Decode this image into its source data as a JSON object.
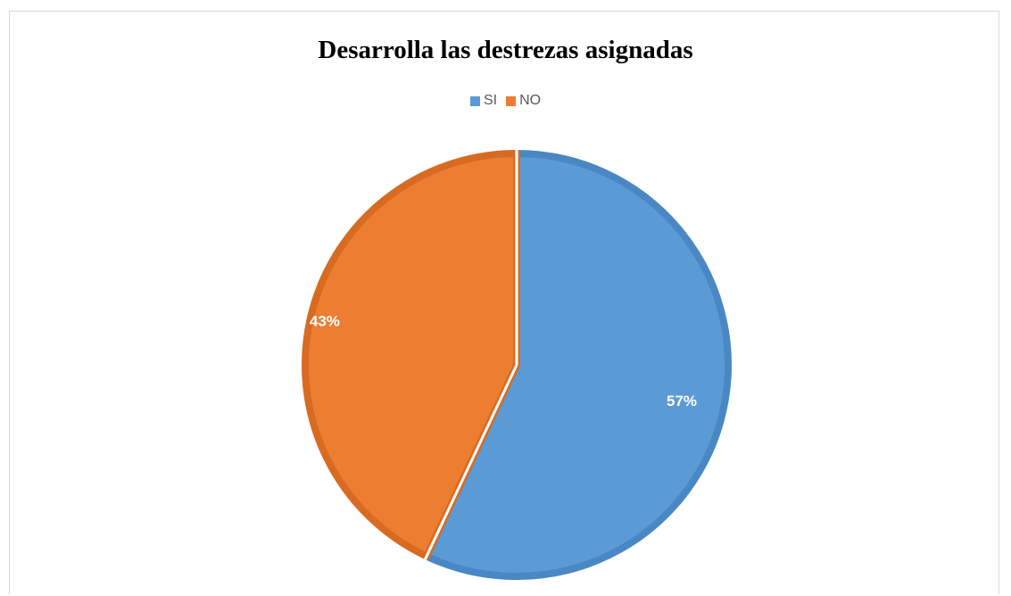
{
  "chart_data": {
    "type": "pie",
    "title": "Desarrolla las destrezas asignadas",
    "legend_position": "top",
    "slices": [
      {
        "label": "SI",
        "value": 57,
        "display": "57%",
        "color": "#5B9BD5",
        "border": "#4A88C4"
      },
      {
        "label": "NO",
        "value": 43,
        "display": "43%",
        "color": "#ED7D31",
        "border": "#D86B22"
      }
    ]
  }
}
